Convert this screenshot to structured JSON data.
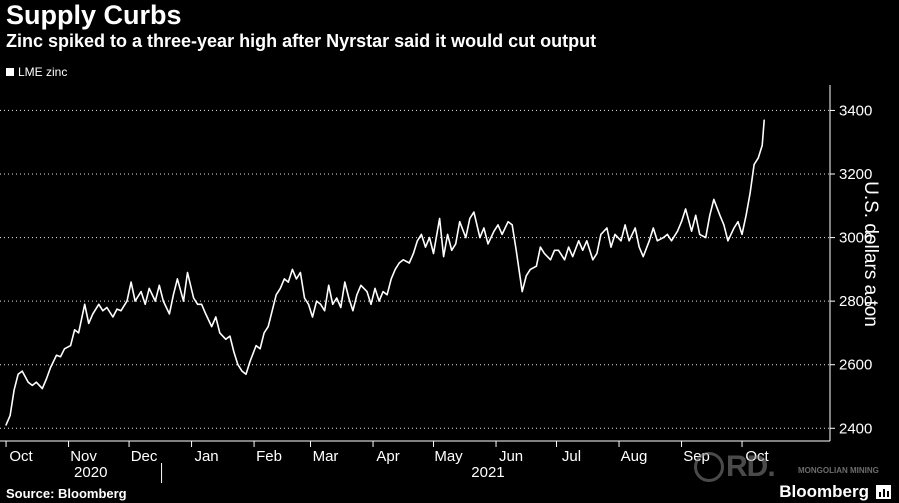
{
  "header": {
    "title": "Supply Curbs",
    "subtitle": "Zinc spiked to a three-year high after Nyrstar said it would cut output",
    "legend_label": "LME zinc"
  },
  "footer": {
    "source": "Source: Bloomberg",
    "brand": "Bloomberg",
    "watermark": "RD.",
    "watermark_sub": "MONGOLIAN MINING"
  },
  "colors": {
    "background": "#000000",
    "line": "#ffffff",
    "grid": "#ffffff",
    "text": "#ffffff"
  },
  "chart_data": {
    "type": "line",
    "title": "Supply Curbs",
    "subtitle": "Zinc spiked to a three-year high after Nyrstar said it would cut output",
    "ylabel": "U.S. dollars a ton",
    "ylim": [
      2360,
      3480
    ],
    "yticks": [
      2400,
      2600,
      2800,
      3000,
      3200,
      3400
    ],
    "y_axis_position": "right",
    "grid": "horizontal dotted",
    "legend_position": "top-left",
    "x_month_labels": [
      "Oct",
      "Nov",
      "Dec",
      "Jan",
      "Feb",
      "Mar",
      "Apr",
      "May",
      "Jun",
      "Jul",
      "Aug",
      "Sep",
      "Oct"
    ],
    "x_year_labels": [
      "2020",
      "2021"
    ],
    "series": [
      {
        "name": "LME zinc",
        "points": [
          [
            "2020-10-01",
            2410
          ],
          [
            "2020-10-03",
            2440
          ],
          [
            "2020-10-05",
            2520
          ],
          [
            "2020-10-07",
            2570
          ],
          [
            "2020-10-09",
            2580
          ],
          [
            "2020-10-12",
            2545
          ],
          [
            "2020-10-14",
            2535
          ],
          [
            "2020-10-16",
            2545
          ],
          [
            "2020-10-19",
            2525
          ],
          [
            "2020-10-21",
            2555
          ],
          [
            "2020-10-23",
            2590
          ],
          [
            "2020-10-26",
            2630
          ],
          [
            "2020-10-28",
            2625
          ],
          [
            "2020-10-30",
            2650
          ],
          [
            "2020-11-02",
            2660
          ],
          [
            "2020-11-04",
            2710
          ],
          [
            "2020-11-06",
            2700
          ],
          [
            "2020-11-09",
            2790
          ],
          [
            "2020-11-11",
            2730
          ],
          [
            "2020-11-13",
            2760
          ],
          [
            "2020-11-16",
            2790
          ],
          [
            "2020-11-18",
            2770
          ],
          [
            "2020-11-20",
            2780
          ],
          [
            "2020-11-23",
            2750
          ],
          [
            "2020-11-25",
            2775
          ],
          [
            "2020-11-27",
            2770
          ],
          [
            "2020-11-30",
            2800
          ],
          [
            "2020-12-02",
            2860
          ],
          [
            "2020-12-04",
            2800
          ],
          [
            "2020-12-07",
            2830
          ],
          [
            "2020-12-09",
            2790
          ],
          [
            "2020-12-11",
            2840
          ],
          [
            "2020-12-14",
            2800
          ],
          [
            "2020-12-16",
            2850
          ],
          [
            "2020-12-18",
            2800
          ],
          [
            "2020-12-21",
            2760
          ],
          [
            "2020-12-23",
            2820
          ],
          [
            "2020-12-25",
            2870
          ],
          [
            "2020-12-28",
            2800
          ],
          [
            "2020-12-30",
            2890
          ],
          [
            "2021-01-02",
            2810
          ],
          [
            "2021-01-04",
            2790
          ],
          [
            "2021-01-06",
            2790
          ],
          [
            "2021-01-08",
            2760
          ],
          [
            "2021-01-11",
            2720
          ],
          [
            "2021-01-13",
            2750
          ],
          [
            "2021-01-15",
            2700
          ],
          [
            "2021-01-18",
            2680
          ],
          [
            "2021-01-20",
            2690
          ],
          [
            "2021-01-22",
            2640
          ],
          [
            "2021-01-24",
            2600
          ],
          [
            "2021-01-26",
            2580
          ],
          [
            "2021-01-28",
            2570
          ],
          [
            "2021-01-30",
            2610
          ],
          [
            "2021-02-02",
            2660
          ],
          [
            "2021-02-04",
            2650
          ],
          [
            "2021-02-06",
            2700
          ],
          [
            "2021-02-08",
            2720
          ],
          [
            "2021-02-10",
            2770
          ],
          [
            "2021-02-12",
            2820
          ],
          [
            "2021-02-14",
            2840
          ],
          [
            "2021-02-16",
            2870
          ],
          [
            "2021-02-18",
            2860
          ],
          [
            "2021-02-20",
            2900
          ],
          [
            "2021-02-22",
            2870
          ],
          [
            "2021-02-24",
            2890
          ],
          [
            "2021-02-26",
            2810
          ],
          [
            "2021-02-28",
            2790
          ],
          [
            "2021-03-02",
            2750
          ],
          [
            "2021-03-04",
            2800
          ],
          [
            "2021-03-06",
            2790
          ],
          [
            "2021-03-08",
            2770
          ],
          [
            "2021-03-10",
            2850
          ],
          [
            "2021-03-12",
            2790
          ],
          [
            "2021-03-14",
            2810
          ],
          [
            "2021-03-16",
            2780
          ],
          [
            "2021-03-18",
            2860
          ],
          [
            "2021-03-20",
            2810
          ],
          [
            "2021-03-22",
            2770
          ],
          [
            "2021-03-24",
            2820
          ],
          [
            "2021-03-26",
            2850
          ],
          [
            "2021-03-29",
            2830
          ],
          [
            "2021-03-31",
            2790
          ],
          [
            "2021-04-02",
            2840
          ],
          [
            "2021-04-04",
            2800
          ],
          [
            "2021-04-06",
            2830
          ],
          [
            "2021-04-08",
            2820
          ],
          [
            "2021-04-10",
            2870
          ],
          [
            "2021-04-12",
            2900
          ],
          [
            "2021-04-14",
            2920
          ],
          [
            "2021-04-16",
            2930
          ],
          [
            "2021-04-19",
            2920
          ],
          [
            "2021-04-21",
            2950
          ],
          [
            "2021-04-23",
            2990
          ],
          [
            "2021-04-25",
            3010
          ],
          [
            "2021-04-27",
            2970
          ],
          [
            "2021-04-29",
            3000
          ],
          [
            "2021-05-01",
            2950
          ],
          [
            "2021-05-04",
            3060
          ],
          [
            "2021-05-06",
            2940
          ],
          [
            "2021-05-08",
            3010
          ],
          [
            "2021-05-10",
            2960
          ],
          [
            "2021-05-12",
            2980
          ],
          [
            "2021-05-14",
            3050
          ],
          [
            "2021-05-17",
            3000
          ],
          [
            "2021-05-19",
            3060
          ],
          [
            "2021-05-21",
            3080
          ],
          [
            "2021-05-24",
            3000
          ],
          [
            "2021-05-26",
            3030
          ],
          [
            "2021-05-28",
            2980
          ],
          [
            "2021-05-31",
            3020
          ],
          [
            "2021-06-02",
            3040
          ],
          [
            "2021-06-04",
            3010
          ],
          [
            "2021-06-07",
            3050
          ],
          [
            "2021-06-09",
            3040
          ],
          [
            "2021-06-11",
            2960
          ],
          [
            "2021-06-14",
            2830
          ],
          [
            "2021-06-16",
            2880
          ],
          [
            "2021-06-18",
            2900
          ],
          [
            "2021-06-21",
            2910
          ],
          [
            "2021-06-23",
            2970
          ],
          [
            "2021-06-25",
            2950
          ],
          [
            "2021-06-28",
            2930
          ],
          [
            "2021-06-30",
            2960
          ],
          [
            "2021-07-02",
            2960
          ],
          [
            "2021-07-05",
            2930
          ],
          [
            "2021-07-07",
            2970
          ],
          [
            "2021-07-09",
            2940
          ],
          [
            "2021-07-12",
            2990
          ],
          [
            "2021-07-14",
            2960
          ],
          [
            "2021-07-16",
            2990
          ],
          [
            "2021-07-19",
            2930
          ],
          [
            "2021-07-21",
            2950
          ],
          [
            "2021-07-23",
            3010
          ],
          [
            "2021-07-26",
            3030
          ],
          [
            "2021-07-28",
            2970
          ],
          [
            "2021-07-30",
            3010
          ],
          [
            "2021-08-02",
            2990
          ],
          [
            "2021-08-04",
            3040
          ],
          [
            "2021-08-06",
            2990
          ],
          [
            "2021-08-09",
            3030
          ],
          [
            "2021-08-11",
            2970
          ],
          [
            "2021-08-13",
            2940
          ],
          [
            "2021-08-16",
            2990
          ],
          [
            "2021-08-18",
            3030
          ],
          [
            "2021-08-20",
            2990
          ],
          [
            "2021-08-23",
            3000
          ],
          [
            "2021-08-25",
            3010
          ],
          [
            "2021-08-27",
            2990
          ],
          [
            "2021-08-30",
            3020
          ],
          [
            "2021-09-01",
            3050
          ],
          [
            "2021-09-03",
            3090
          ],
          [
            "2021-09-06",
            3020
          ],
          [
            "2021-09-08",
            3070
          ],
          [
            "2021-09-10",
            3010
          ],
          [
            "2021-09-13",
            3000
          ],
          [
            "2021-09-15",
            3070
          ],
          [
            "2021-09-17",
            3120
          ],
          [
            "2021-09-20",
            3070
          ],
          [
            "2021-09-22",
            3040
          ],
          [
            "2021-09-24",
            2990
          ],
          [
            "2021-09-27",
            3030
          ],
          [
            "2021-09-29",
            3050
          ],
          [
            "2021-10-01",
            3010
          ],
          [
            "2021-10-03",
            3070
          ],
          [
            "2021-10-05",
            3140
          ],
          [
            "2021-10-07",
            3230
          ],
          [
            "2021-10-09",
            3250
          ],
          [
            "2021-10-11",
            3290
          ],
          [
            "2021-10-12",
            3370
          ]
        ]
      }
    ]
  }
}
